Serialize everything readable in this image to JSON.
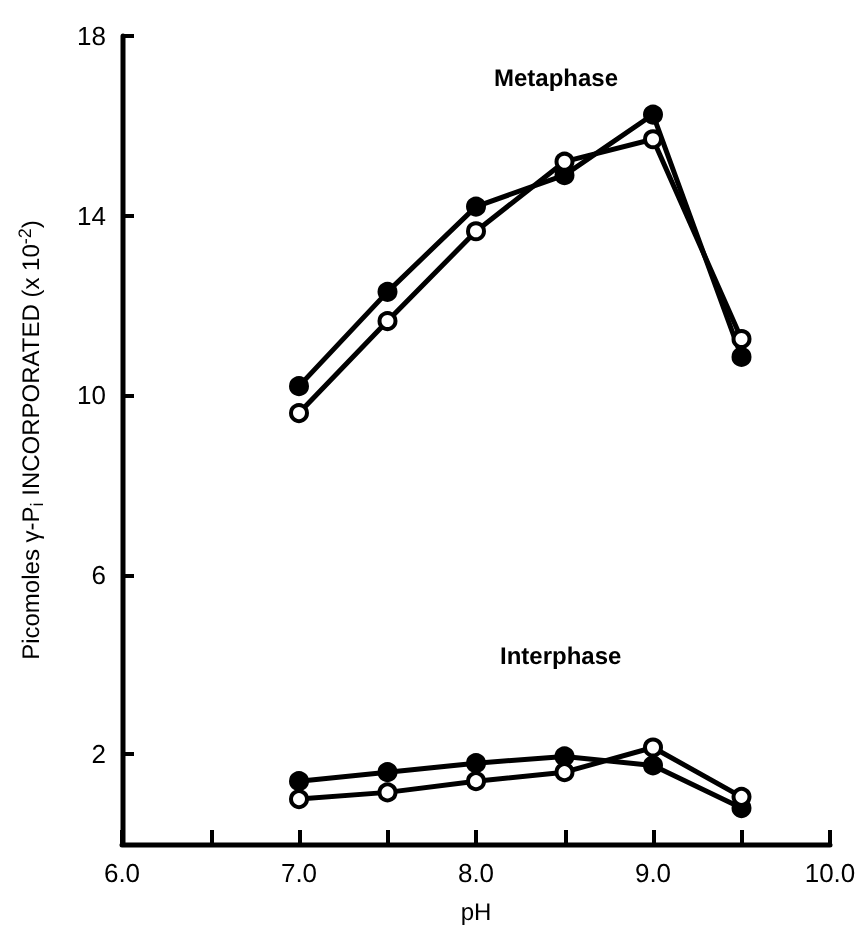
{
  "chart_data": {
    "type": "line",
    "xlabel": "pH",
    "ylabel": "Picomoles γ-P$_{i}$ INCORPORATED (x 10$^{-2}$)",
    "x": [
      7.0,
      7.5,
      8.0,
      8.5,
      9.0,
      9.5
    ],
    "series": [
      {
        "color": "#000000",
        "marker": "circle",
        "values": [
          10.2,
          12.3,
          14.2,
          14.9,
          16.25,
          10.85
        ]
      },
      {
        "color": "#000000",
        "marker": "open circle",
        "values": [
          9.6,
          11.65,
          13.65,
          15.2,
          15.7,
          11.25
        ]
      },
      {
        "color": "#000000",
        "marker": "circle",
        "values": [
          1.4,
          1.6,
          1.8,
          1.95,
          1.75,
          0.8
        ]
      },
      {
        "color": "#000000",
        "marker": "open circle",
        "values": [
          1.0,
          1.15,
          1.4,
          1.6,
          2.15,
          1.05
        ]
      }
    ],
    "annotations": [
      "Metaphase",
      "Interphase"
    ],
    "xlim": [
      6.0,
      10.0
    ],
    "xticks": [
      {
        "value": 6,
        "label": "6.0"
      },
      {
        "value": 6.5,
        "label": null
      },
      {
        "value": 7,
        "label": "7.0"
      },
      {
        "value": 7.5,
        "label": null
      },
      {
        "value": 8,
        "label": "8.0"
      },
      {
        "value": 8.5,
        "label": null
      },
      {
        "value": 9,
        "label": "9.0"
      },
      {
        "value": 9.5,
        "label": null
      },
      {
        "value": 10,
        "label": "10.0"
      }
    ],
    "ylim": [
      0,
      18
    ],
    "yticks": [
      2,
      6,
      10,
      14,
      18
    ],
    "grid": false,
    "line_style": "solid"
  }
}
